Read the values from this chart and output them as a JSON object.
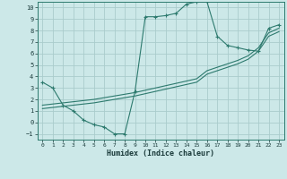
{
  "xlabel": "Humidex (Indice chaleur)",
  "background_color": "#cce8e8",
  "grid_color": "#aacccc",
  "line_color": "#2d7a6e",
  "xlim": [
    -0.5,
    23.5
  ],
  "ylim": [
    -1.5,
    10.5
  ],
  "yticks": [
    -1,
    0,
    1,
    2,
    3,
    4,
    5,
    6,
    7,
    8,
    9,
    10
  ],
  "xticks": [
    0,
    1,
    2,
    3,
    4,
    5,
    6,
    7,
    8,
    9,
    10,
    11,
    12,
    13,
    14,
    15,
    16,
    17,
    18,
    19,
    20,
    21,
    22,
    23
  ],
  "curve1_x": [
    0,
    1,
    2,
    3,
    4,
    5,
    6,
    7,
    8,
    9,
    10,
    11,
    12,
    13,
    14,
    15,
    16,
    17,
    18,
    19,
    20,
    21,
    22,
    23
  ],
  "curve1_y": [
    3.5,
    3.0,
    1.5,
    1.0,
    0.2,
    -0.2,
    -0.4,
    -1.0,
    -1.0,
    2.7,
    9.2,
    9.2,
    9.3,
    9.5,
    10.3,
    10.5,
    10.5,
    7.5,
    6.7,
    6.5,
    6.3,
    6.2,
    8.2,
    8.5
  ],
  "curve2_x": [
    0,
    1,
    2,
    3,
    4,
    5,
    6,
    7,
    8,
    9,
    10,
    11,
    12,
    13,
    14,
    15,
    16,
    17,
    18,
    19,
    20,
    21,
    22,
    23
  ],
  "curve2_y": [
    1.5,
    1.6,
    1.7,
    1.8,
    1.9,
    2.0,
    2.15,
    2.3,
    2.45,
    2.6,
    2.8,
    3.0,
    3.2,
    3.4,
    3.6,
    3.8,
    4.5,
    4.8,
    5.1,
    5.4,
    5.8,
    6.5,
    7.8,
    8.2
  ],
  "curve3_x": [
    0,
    1,
    2,
    3,
    4,
    5,
    6,
    7,
    8,
    9,
    10,
    11,
    12,
    13,
    14,
    15,
    16,
    17,
    18,
    19,
    20,
    21,
    22,
    23
  ],
  "curve3_y": [
    1.2,
    1.3,
    1.4,
    1.5,
    1.6,
    1.7,
    1.85,
    2.0,
    2.15,
    2.3,
    2.5,
    2.7,
    2.9,
    3.1,
    3.3,
    3.5,
    4.2,
    4.5,
    4.8,
    5.1,
    5.5,
    6.2,
    7.5,
    7.9
  ]
}
